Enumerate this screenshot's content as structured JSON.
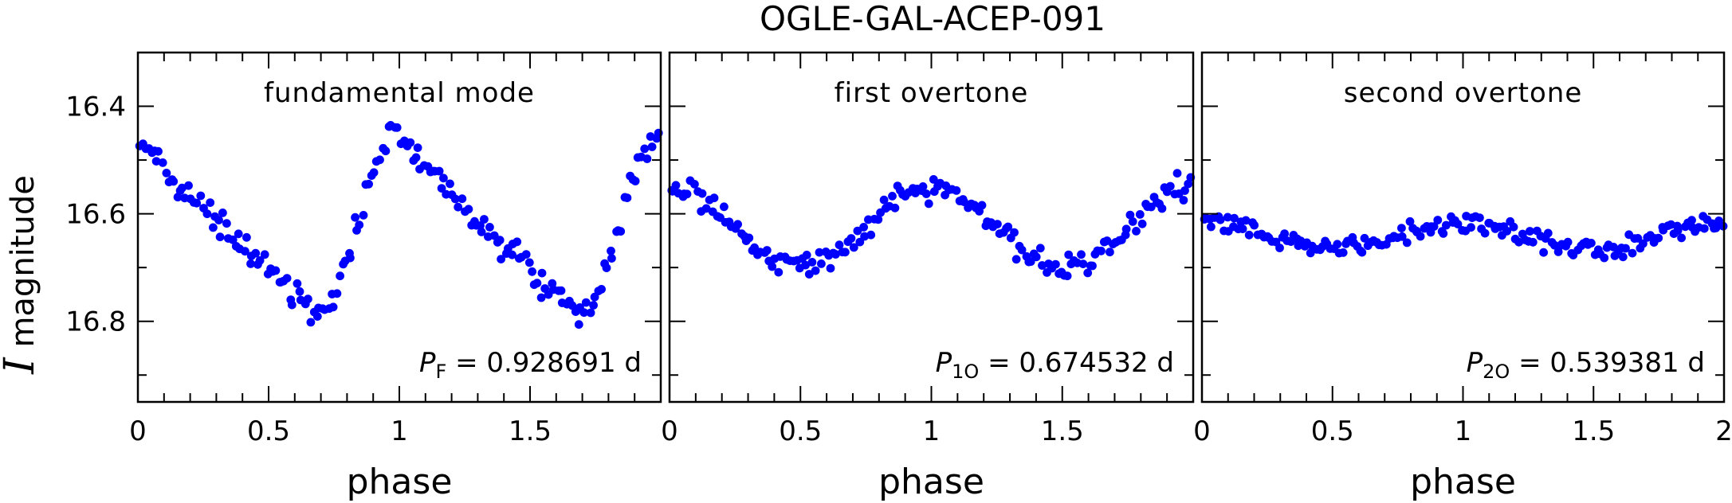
{
  "chart_data": {
    "type": "scatter",
    "title": "OGLE-GAL-ACEP-091",
    "ylabel_symbol": "I",
    "ylabel_text": " magnitude",
    "xlabel": "phase",
    "ylim": [
      16.3,
      16.95
    ],
    "y_inverted": true,
    "y_major_ticks": [
      16.4,
      16.6,
      16.8
    ],
    "y_minor_step": 0.1,
    "marker_color": "#0000ff",
    "panels": [
      {
        "id": "fundamental",
        "title": "fundamental mode",
        "period_symbol": "P",
        "period_subscript": "F",
        "period_value": " = 0.928691 d",
        "xlim": [
          0,
          2
        ],
        "x_major_ticks": [
          0,
          0.5,
          1,
          1.5
        ],
        "x_tick_labels": [
          "0",
          "0.5",
          "1",
          "1.5"
        ],
        "x_minor_step": 0.1,
        "curve_shape": "sawtooth",
        "mean_mag": 16.62,
        "amplitude": 0.165,
        "scatter": 0.013
      },
      {
        "id": "first-overtone",
        "title": "first overtone",
        "period_symbol": "P",
        "period_subscript": "1O",
        "period_value": " = 0.674532 d",
        "xlim": [
          0,
          2
        ],
        "x_major_ticks": [
          0,
          0.5,
          1,
          1.5
        ],
        "x_tick_labels": [
          "0",
          "0.5",
          "1",
          "1.5"
        ],
        "x_minor_step": 0.1,
        "curve_shape": "sinusoid",
        "mean_mag": 16.625,
        "amplitude": 0.075,
        "scatter": 0.012
      },
      {
        "id": "second-overtone",
        "title": "second overtone",
        "period_symbol": "P",
        "period_subscript": "2O",
        "period_value": " = 0.539381 d",
        "xlim": [
          0,
          2
        ],
        "x_major_ticks": [
          0,
          0.5,
          1,
          1.5,
          2
        ],
        "x_tick_labels": [
          "0",
          "0.5",
          "1",
          "1.5",
          "2"
        ],
        "x_minor_step": 0.1,
        "curve_shape": "sinusoid",
        "mean_mag": 16.64,
        "amplitude": 0.025,
        "scatter": 0.01
      }
    ]
  }
}
